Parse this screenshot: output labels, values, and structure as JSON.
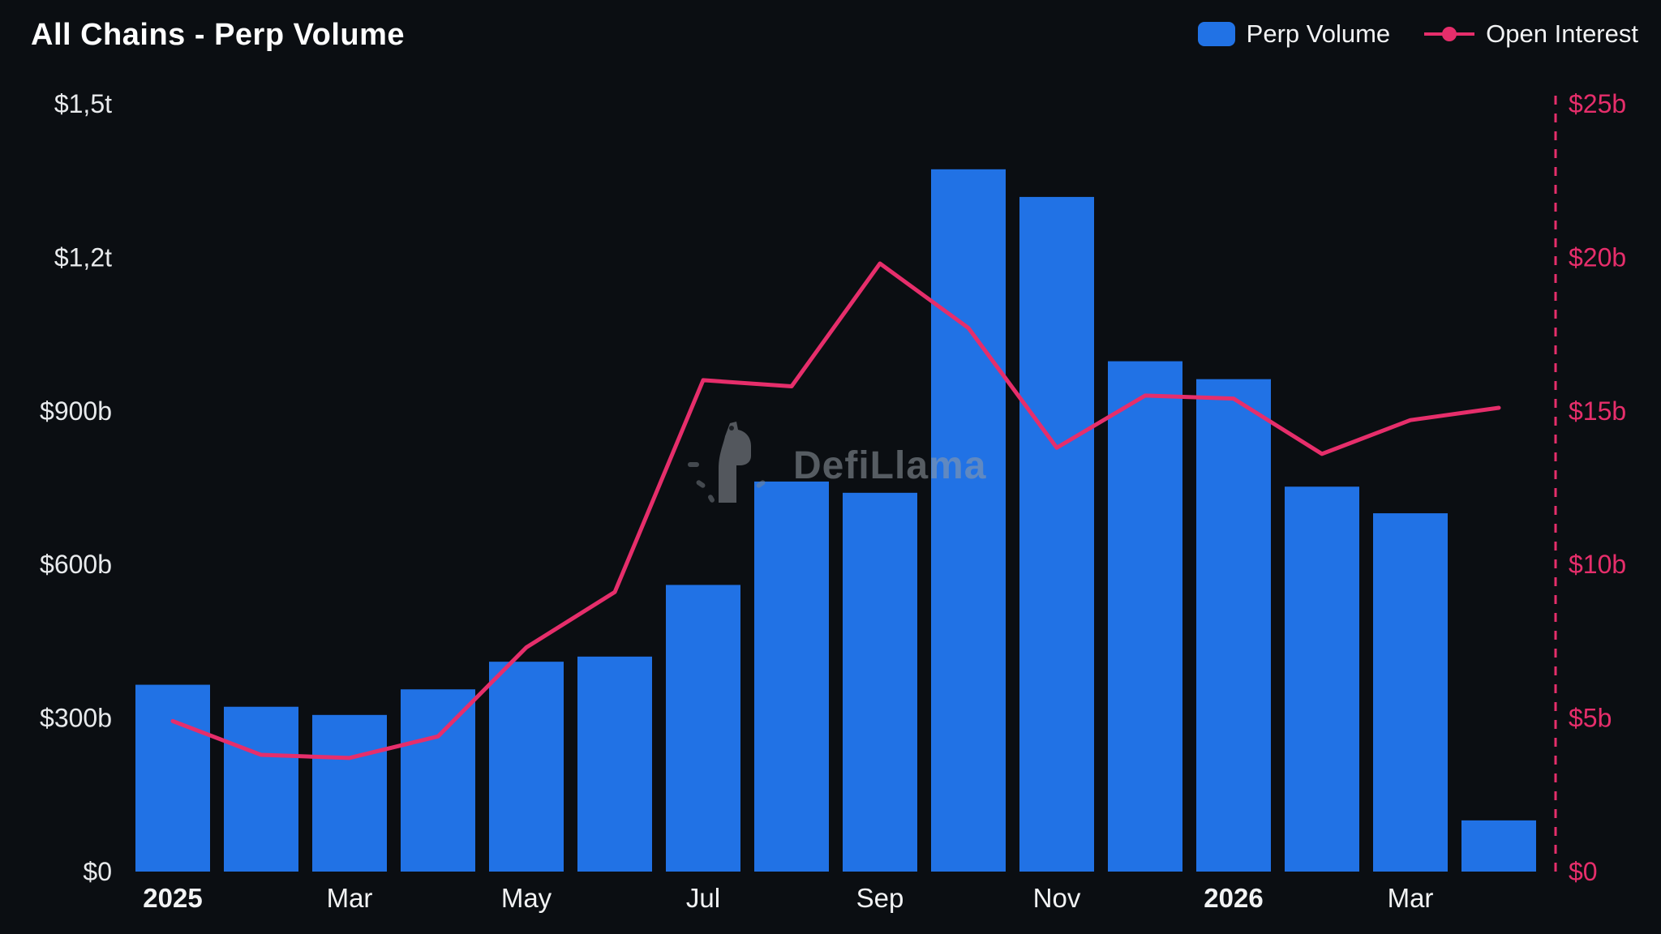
{
  "watermark": "DefiLlama",
  "colors": {
    "background": "#0b0e12",
    "bar": "#2172e5",
    "line": "#e62e6b",
    "axis_text": "#e8eaec",
    "x_axis_text": "#f2f3f4",
    "right_axis_text": "#e62e6b",
    "watermark_text": "#969ca4"
  },
  "legend": [
    {
      "label": "Perp Volume",
      "swatch": "bar"
    },
    {
      "label": "Open Interest",
      "swatch": "line-dot"
    }
  ],
  "chart_data": {
    "type": "bar",
    "title": "All Chains - Perp Volume",
    "x_months": [
      "Jan 2025",
      "Feb 2025",
      "Mar 2025",
      "Apr 2025",
      "May 2025",
      "Jun 2025",
      "Jul 2025",
      "Aug 2025",
      "Sep 2025",
      "Oct 2025",
      "Nov 2025",
      "Dec 2025",
      "Jan 2026",
      "Feb 2026",
      "Mar 2026",
      "Apr 2026"
    ],
    "series": [
      {
        "name": "Perp Volume",
        "type": "bar",
        "axis": "left",
        "unit": "$ billions",
        "values": [
          365,
          322,
          306,
          356,
          410,
          420,
          560,
          762,
          740,
          1372,
          1318,
          997,
          962,
          752,
          700,
          100
        ]
      },
      {
        "name": "Open Interest",
        "type": "line",
        "axis": "right",
        "unit": "$ billions",
        "values": [
          4.9,
          3.8,
          3.7,
          4.4,
          7.3,
          9.1,
          16.0,
          15.8,
          19.8,
          17.7,
          13.8,
          15.5,
          15.4,
          13.6,
          14.7,
          15.1
        ]
      }
    ],
    "left_axis": {
      "min": 0,
      "max": 1500,
      "ticks": [
        {
          "label": "$1,5t",
          "value": 1500
        },
        {
          "label": "$1,2t",
          "value": 1200
        },
        {
          "label": "$900b",
          "value": 900
        },
        {
          "label": "$600b",
          "value": 600
        },
        {
          "label": "$300b",
          "value": 300
        },
        {
          "label": "$0",
          "value": 0
        }
      ]
    },
    "right_axis": {
      "min": 0,
      "max": 25,
      "ticks": [
        {
          "label": "$25b",
          "value": 25
        },
        {
          "label": "$20b",
          "value": 20
        },
        {
          "label": "$15b",
          "value": 15
        },
        {
          "label": "$10b",
          "value": 10
        },
        {
          "label": "$5b",
          "value": 5
        },
        {
          "label": "$0",
          "value": 0
        }
      ]
    },
    "x_ticks": [
      {
        "label": "2025",
        "index": 0,
        "bold": true
      },
      {
        "label": "Mar",
        "index": 2,
        "bold": false
      },
      {
        "label": "May",
        "index": 4,
        "bold": false
      },
      {
        "label": "Jul",
        "index": 6,
        "bold": false
      },
      {
        "label": "Sep",
        "index": 8,
        "bold": false
      },
      {
        "label": "Nov",
        "index": 10,
        "bold": false
      },
      {
        "label": "2026",
        "index": 12,
        "bold": true
      },
      {
        "label": "Mar",
        "index": 14,
        "bold": false
      }
    ],
    "grid": false,
    "legend_position": "top-right",
    "annotations": [
      {
        "type": "dashed-vline",
        "position": "right-edge",
        "color": "#e62e6b"
      }
    ]
  }
}
